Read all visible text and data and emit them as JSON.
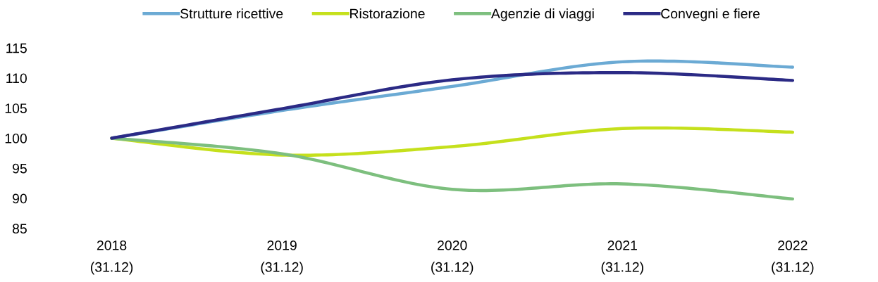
{
  "chart_data": {
    "type": "line",
    "categories": [
      "2018\n(31.12)",
      "2019\n(31.12)",
      "2020\n(31.12)",
      "2021\n(31.12)",
      "2022\n(31.12)"
    ],
    "series": [
      {
        "name": "Strutture ricettive",
        "color": "#6baad4",
        "values": [
          100,
          104.6,
          108.6,
          112.7,
          111.8
        ]
      },
      {
        "name": "Ristorazione",
        "color": "#c5e01c",
        "values": [
          100,
          97.2,
          98.6,
          101.6,
          101.0
        ]
      },
      {
        "name": "Agenzie di viaggi",
        "color": "#7dbf7e",
        "values": [
          100,
          97.4,
          91.5,
          92.4,
          89.9
        ]
      },
      {
        "name": "Convegni e fiere",
        "color": "#2b2a85",
        "values": [
          100,
          104.9,
          109.7,
          110.9,
          109.6
        ]
      }
    ],
    "ylim": [
      85,
      115
    ],
    "yticks": [
      85,
      90,
      95,
      100,
      105,
      110,
      115
    ],
    "grid": false,
    "legend": "top",
    "marker": "none",
    "line_style": "solid"
  }
}
